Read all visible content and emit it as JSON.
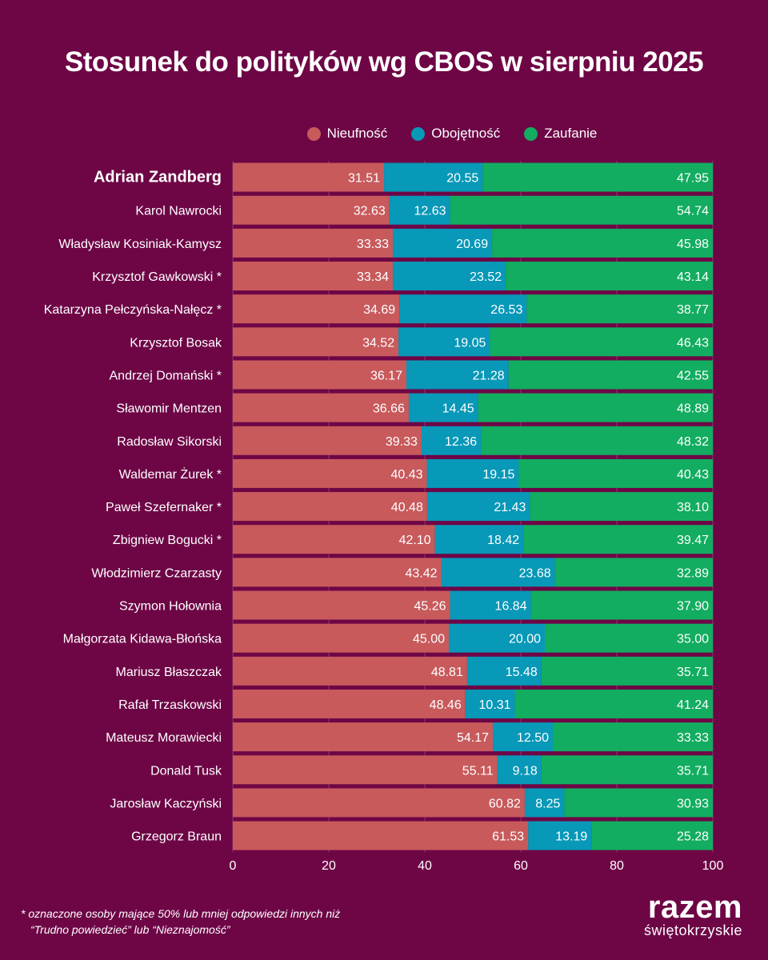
{
  "colors": {
    "background": "#6e0646",
    "nieufnosc": "#c85a5c",
    "obojetnosc": "#0898b8",
    "zaufanie": "#12ad60",
    "grid": "#8a3a6a",
    "text": "#ffffff"
  },
  "chart_data": {
    "type": "bar",
    "orientation": "horizontal",
    "stacked": true,
    "title": "Stosunek do polityków wg CBOS w sierpniu 2025",
    "legend_position": "top",
    "xlim": [
      0,
      100
    ],
    "xticks": [
      "0",
      "20",
      "40",
      "60",
      "80",
      "100"
    ],
    "grid": true,
    "highlighted_category": "Adrian Zandberg",
    "categories": [
      "Adrian Zandberg",
      "Karol Nawrocki",
      "Władysław Kosiniak-Kamysz",
      "Krzysztof Gawkowski *",
      "Katarzyna Pełczyńska-Nałęcz *",
      "Krzysztof Bosak",
      "Andrzej Domański *",
      "Sławomir Mentzen",
      "Radosław Sikorski",
      "Waldemar Żurek *",
      "Paweł Szefernaker *",
      "Zbigniew Bogucki *",
      "Włodzimierz Czarzasty",
      "Szymon Hołownia",
      "Małgorzata Kidawa-Błońska",
      "Mariusz Błaszczak",
      "Rafał Trzaskowski",
      "Mateusz Morawiecki",
      "Donald Tusk",
      "Jarosław Kaczyński",
      "Grzegorz Braun"
    ],
    "series": [
      {
        "name": "Nieufność",
        "color_key": "nieufnosc",
        "labels": [
          "31.51",
          "32.63",
          "33.33",
          "33.34",
          "34.69",
          "34.52",
          "36.17",
          "36.66",
          "39.33",
          "40.43",
          "40.48",
          "42.10",
          "43.42",
          "45.26",
          "45.00",
          "48.81",
          "48.46",
          "54.17",
          "55.11",
          "60.82",
          "61.53"
        ]
      },
      {
        "name": "Obojętność",
        "color_key": "obojetnosc",
        "labels": [
          "20.55",
          "12.63",
          "20.69",
          "23.52",
          "26.53",
          "19.05",
          "21.28",
          "14.45",
          "12.36",
          "19.15",
          "21.43",
          "18.42",
          "23.68",
          "16.84",
          "20.00",
          "15.48",
          "10.31",
          "12.50",
          "9.18",
          "8.25",
          "13.19"
        ]
      },
      {
        "name": "Zaufanie",
        "color_key": "zaufanie",
        "labels": [
          "47.95",
          "54.74",
          "45.98",
          "43.14",
          "38.77",
          "46.43",
          "42.55",
          "48.89",
          "48.32",
          "40.43",
          "38.10",
          "39.47",
          "32.89",
          "37.90",
          "35.00",
          "35.71",
          "41.24",
          "33.33",
          "35.71",
          "30.93",
          "25.28"
        ]
      }
    ]
  },
  "footnote": {
    "line1": "* oznaczone osoby mające 50% lub mniej odpowiedzi innych niż",
    "line2": "“Trudno powiedzieć” lub “Nieznajomość”"
  },
  "logo": {
    "main": "razem",
    "sub": "świętokrzyskie"
  }
}
